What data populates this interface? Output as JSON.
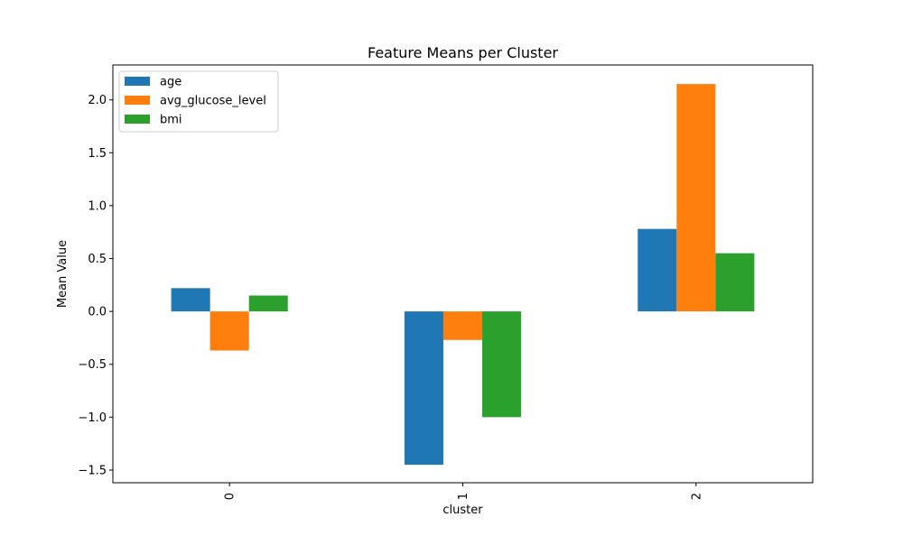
{
  "chart_data": {
    "type": "bar",
    "title": "Feature Means per Cluster",
    "xlabel": "cluster",
    "ylabel": "Mean Value",
    "categories": [
      "0",
      "1",
      "2"
    ],
    "series": [
      {
        "name": "age",
        "values": [
          0.22,
          -1.45,
          0.78
        ]
      },
      {
        "name": "avg_glucose_level",
        "values": [
          -0.37,
          -0.27,
          2.15
        ]
      },
      {
        "name": "bmi",
        "values": [
          0.15,
          -1.0,
          0.55
        ]
      }
    ],
    "ylim": [
      -1.62,
      2.33
    ],
    "yticks": [
      -1.5,
      -1.0,
      -0.5,
      0.0,
      0.5,
      1.0,
      1.5,
      2.0
    ],
    "ytick_labels": [
      "−1.5",
      "−1.0",
      "−0.5",
      "0.0",
      "0.5",
      "1.0",
      "1.5",
      "2.0"
    ],
    "grid": false,
    "legend_position": "top-left",
    "colors": [
      "#1f77b4",
      "#ff7f0e",
      "#2ca02c"
    ],
    "xtick_rotation": "vertical"
  }
}
